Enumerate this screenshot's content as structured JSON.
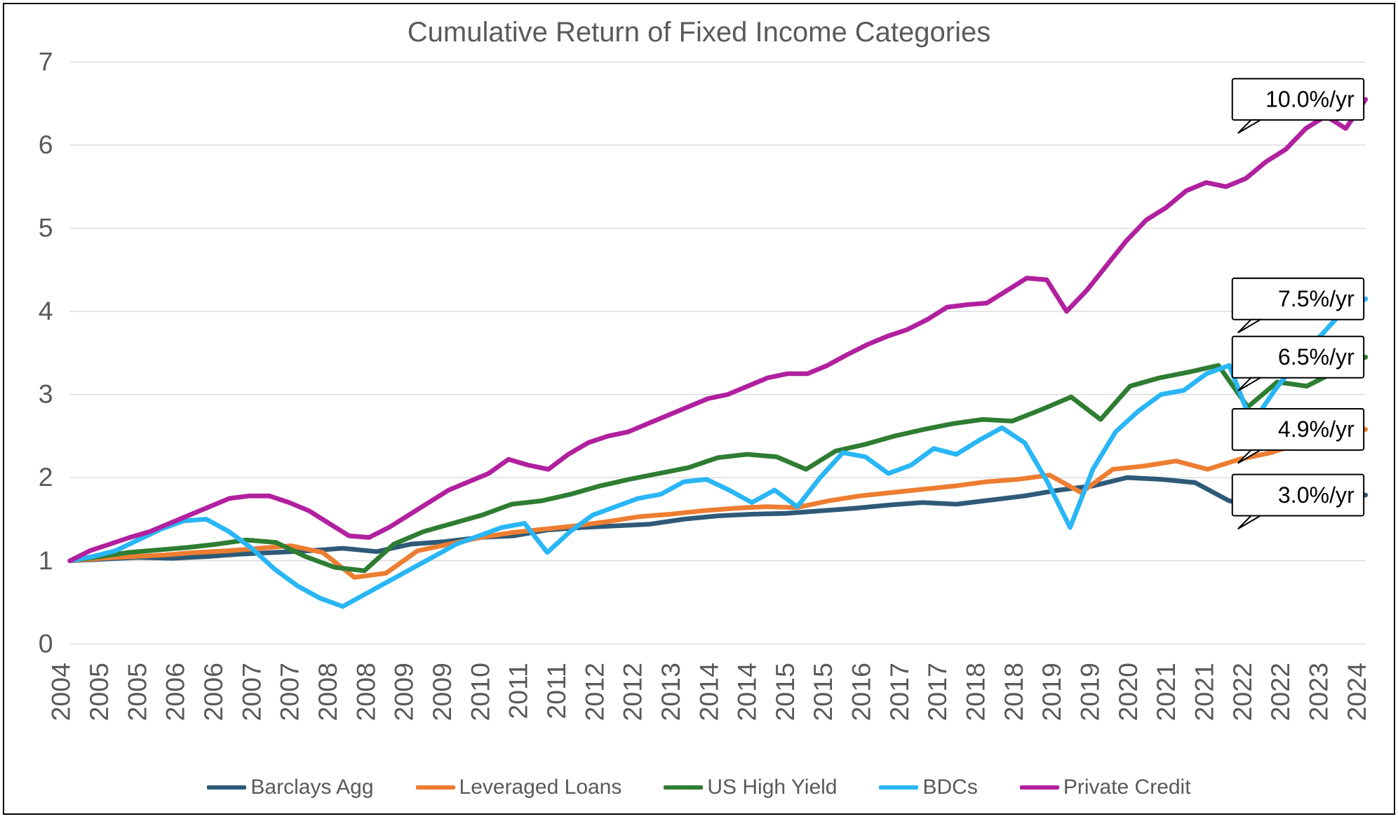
{
  "chart": {
    "type": "line",
    "title": "Cumulative Return of Fixed Income Categories",
    "title_fontsize": 40,
    "background_color": "#ffffff",
    "grid_color": "#d9d9d9",
    "line_width": 5,
    "ylim": [
      0,
      7
    ],
    "ytick_step": 1,
    "yticks": [
      0,
      1,
      2,
      3,
      4,
      5,
      6,
      7
    ],
    "x_labels": [
      "2004",
      "2005",
      "2005",
      "2006",
      "2006",
      "2007",
      "2007",
      "2008",
      "2008",
      "2009",
      "2009",
      "2010",
      "2011",
      "2011",
      "2012",
      "2012",
      "2013",
      "2014",
      "2014",
      "2015",
      "2015",
      "2016",
      "2017",
      "2017",
      "2018",
      "2018",
      "2019",
      "2019",
      "2020",
      "2021",
      "2021",
      "2022",
      "2022",
      "2023",
      "2024"
    ],
    "x_label_fontsize": 26,
    "series": [
      {
        "name": "Barclays Agg",
        "color": "#2e5a78",
        "callout": "3.0%/yr",
        "values": [
          1.0,
          1.02,
          1.04,
          1.03,
          1.05,
          1.08,
          1.1,
          1.12,
          1.15,
          1.11,
          1.2,
          1.23,
          1.28,
          1.3,
          1.37,
          1.4,
          1.42,
          1.44,
          1.5,
          1.54,
          1.56,
          1.57,
          1.6,
          1.63,
          1.67,
          1.7,
          1.68,
          1.73,
          1.78,
          1.85,
          1.9,
          2.0,
          1.98,
          1.94,
          1.72,
          1.66,
          1.77,
          1.78,
          1.79
        ]
      },
      {
        "name": "Leveraged Loans",
        "color": "#ed7d31",
        "callout": "4.9%/yr",
        "values": [
          1.0,
          1.03,
          1.05,
          1.07,
          1.1,
          1.12,
          1.15,
          1.18,
          1.1,
          0.8,
          0.85,
          1.12,
          1.2,
          1.28,
          1.34,
          1.38,
          1.42,
          1.47,
          1.53,
          1.56,
          1.6,
          1.63,
          1.65,
          1.64,
          1.72,
          1.78,
          1.82,
          1.86,
          1.9,
          1.95,
          1.98,
          2.03,
          1.82,
          2.1,
          2.14,
          2.2,
          2.1,
          2.22,
          2.3,
          2.42,
          2.55,
          2.58
        ]
      },
      {
        "name": "US High Yield",
        "color": "#2e7d32",
        "callout": "6.5%/yr",
        "values": [
          1.0,
          1.05,
          1.1,
          1.13,
          1.16,
          1.2,
          1.25,
          1.22,
          1.05,
          0.92,
          0.88,
          1.2,
          1.35,
          1.45,
          1.55,
          1.68,
          1.72,
          1.8,
          1.9,
          1.98,
          2.05,
          2.12,
          2.24,
          2.28,
          2.25,
          2.1,
          2.32,
          2.4,
          2.5,
          2.58,
          2.65,
          2.7,
          2.68,
          2.82,
          2.97,
          2.7,
          3.1,
          3.2,
          3.27,
          3.35,
          2.85,
          3.15,
          3.1,
          3.28,
          3.45
        ]
      },
      {
        "name": "BDCs",
        "color": "#29b6f6",
        "callout": "7.5%/yr",
        "values": [
          1.0,
          1.05,
          1.12,
          1.25,
          1.38,
          1.48,
          1.5,
          1.35,
          1.15,
          0.9,
          0.7,
          0.55,
          0.45,
          0.6,
          0.75,
          0.9,
          1.05,
          1.2,
          1.3,
          1.4,
          1.45,
          1.1,
          1.35,
          1.55,
          1.65,
          1.75,
          1.8,
          1.95,
          1.98,
          1.85,
          1.7,
          1.85,
          1.65,
          2.0,
          2.3,
          2.25,
          2.05,
          2.15,
          2.35,
          2.28,
          2.45,
          2.6,
          2.42,
          1.95,
          1.4,
          2.1,
          2.55,
          2.8,
          3.0,
          3.05,
          3.25,
          3.35,
          2.65,
          3.05,
          3.4,
          3.7,
          4.0,
          4.15
        ]
      },
      {
        "name": "Private Credit",
        "color": "#b1209f",
        "callout": "10.0%/yr",
        "values": [
          1.0,
          1.12,
          1.2,
          1.28,
          1.35,
          1.45,
          1.55,
          1.65,
          1.75,
          1.78,
          1.78,
          1.7,
          1.6,
          1.45,
          1.3,
          1.28,
          1.4,
          1.55,
          1.7,
          1.85,
          1.95,
          2.05,
          2.22,
          2.15,
          2.1,
          2.28,
          2.42,
          2.5,
          2.55,
          2.65,
          2.75,
          2.85,
          2.95,
          3.0,
          3.1,
          3.2,
          3.25,
          3.25,
          3.35,
          3.48,
          3.6,
          3.7,
          3.78,
          3.9,
          4.05,
          4.08,
          4.1,
          4.25,
          4.4,
          4.38,
          4.0,
          4.25,
          4.55,
          4.85,
          5.1,
          5.25,
          5.45,
          5.55,
          5.5,
          5.6,
          5.8,
          5.95,
          6.2,
          6.35,
          6.2,
          6.55
        ]
      }
    ]
  }
}
